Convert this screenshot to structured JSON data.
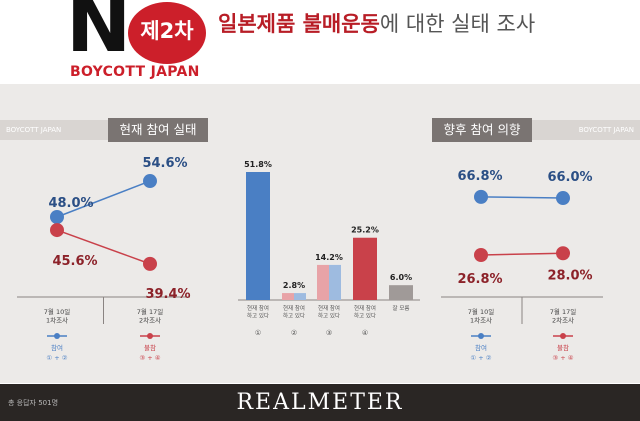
{
  "header": {
    "logo_letter": "N",
    "badge": "제2차",
    "logo_sub": "BOYCOTT JAPAN",
    "title_strong": "일본제품 불매운동",
    "title_rest": "에 대한 실태 조사"
  },
  "left": {
    "strip": "BOYCOTT JAPAN",
    "label": "현재 참여 실태"
  },
  "right": {
    "strip": "BOYCOTT JAPAN",
    "label": "향후 참여 의향"
  },
  "footer": {
    "note": "총 응답자 501명",
    "brand": "REALMETER"
  },
  "colors": {
    "blue": "#4a7fc4",
    "red": "#c9414a",
    "gray": "#a09a98",
    "pink": "#e8a3a7",
    "lightblue": "#9ebbe0"
  },
  "chart_data": [
    {
      "type": "line",
      "x_labels": [
        "7월 10일\n1차조사",
        "7월 17일\n2차조사"
      ],
      "series": [
        {
          "name": "참여",
          "sub": "① + ②",
          "values": [
            48.0,
            54.6
          ],
          "labels": [
            "48.0%",
            "54.6%"
          ],
          "color": "#4a7fc4"
        },
        {
          "name": "불참",
          "sub": "③ + ④",
          "values": [
            45.6,
            39.4
          ],
          "labels": [
            "45.6%",
            "39.4%"
          ],
          "color": "#c9414a"
        }
      ]
    },
    {
      "type": "bar",
      "categories": [
        "현재 참여\n하고 있다",
        "현재 참여\n하고 있다",
        "현재 참여\n하고 있다",
        "현재 참여\n하고 있다",
        "잘 모름"
      ],
      "category_nums": [
        "①",
        "②",
        "③",
        "④",
        ""
      ],
      "values": [
        51.8,
        2.8,
        14.2,
        25.2,
        6.0
      ],
      "labels": [
        "51.8%",
        "2.8%",
        "14.2%",
        "25.2%",
        "6.0%"
      ],
      "styles": [
        "blue",
        "mixed",
        "mixed",
        "red",
        "gray"
      ]
    },
    {
      "type": "line",
      "x_labels": [
        "7월 10일\n1차조사",
        "7월 17일\n2차조사"
      ],
      "series": [
        {
          "name": "참여",
          "sub": "① + ②",
          "values": [
            66.8,
            66.0
          ],
          "labels": [
            "66.8%",
            "66.0%"
          ],
          "color": "#4a7fc4"
        },
        {
          "name": "불참",
          "sub": "③ + ④",
          "values": [
            26.8,
            28.0
          ],
          "labels": [
            "26.8%",
            "28.0%"
          ],
          "color": "#c9414a"
        }
      ]
    }
  ]
}
